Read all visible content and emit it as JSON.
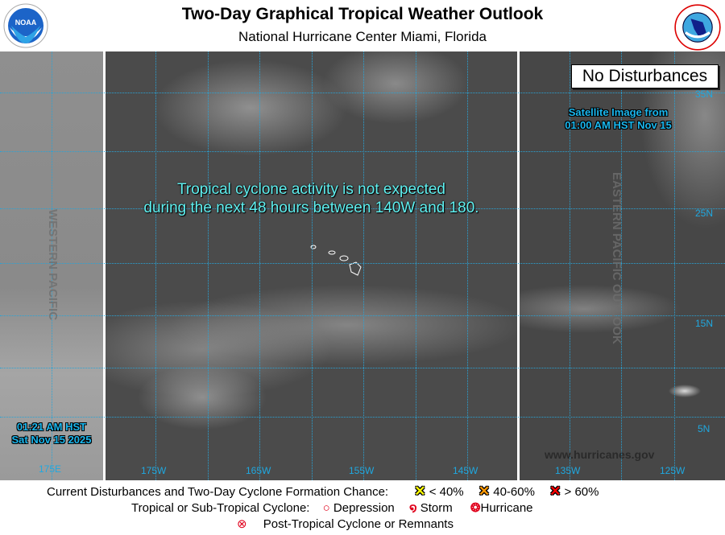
{
  "header": {
    "title": "Two-Day Graphical Tropical Weather Outlook",
    "subtitle": "National Hurricane Center  Miami, Florida",
    "left_logo": "NOAA",
    "right_logo": "NATIONAL WEATHER SERVICE"
  },
  "map": {
    "message_line1": "Tropical cyclone activity is not expected",
    "message_line2": "during the next 48 hours between 140W and 180.",
    "status_box": "No Disturbances",
    "satellite_line1": "Satellite Image from",
    "satellite_line2": "01:00 AM HST Nov 15",
    "time_line1": "01:21 AM HST",
    "time_line2": "Sat Nov 15 2025",
    "watermark_west": "WESTERN PACIFIC",
    "watermark_east": "EASTERN PACIFIC OUTLOOK",
    "website": "www.hurricanes.gov",
    "lon_labels": [
      "175E",
      "175W",
      "165W",
      "155W",
      "145W",
      "135W",
      "125W"
    ],
    "lat_labels": [
      "35N",
      "25N",
      "15N",
      "5N"
    ],
    "grid_color": "#29a3d6"
  },
  "legend": {
    "formation_label": "Current Disturbances and Two-Day Cyclone Formation Chance:",
    "low": "< 40%",
    "medium": "40-60%",
    "high": "> 60%",
    "low_color": "#ffff00",
    "medium_color": "#ff9900",
    "high_color": "#ff0000",
    "cyclone_label": "Tropical or Sub-Tropical Cyclone:",
    "depression": "Depression",
    "storm": "Storm",
    "hurricane": "Hurricane",
    "post_tropical": "Post-Tropical Cyclone or Remnants"
  }
}
